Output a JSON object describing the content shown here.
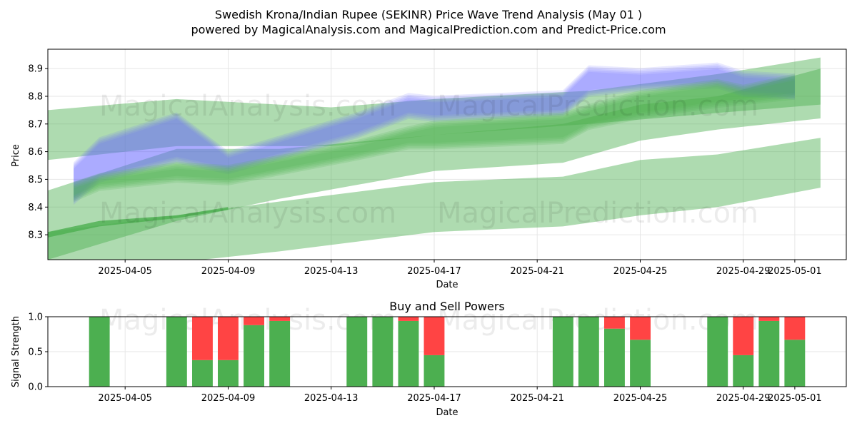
{
  "title_line1": "Swedish Krona/Indian Rupee (SEKINR) Price Wave Trend Analysis (May 01 )",
  "title_line2": "powered by MagicalAnalysis.com and MagicalPrediction.com and Predict-Price.com",
  "watermarks": [
    "MagicalAnalysis.com",
    "MagicalPrediction.com"
  ],
  "colors": {
    "blue_band": "#6666ff",
    "green_band": "#4caf50",
    "buy": "#4caf50",
    "sell": "#ff4444"
  },
  "chart_data": [
    {
      "type": "area",
      "title": "",
      "xlabel": "Date",
      "ylabel": "Price",
      "xlim": [
        "2025-04-02",
        "2025-05-03"
      ],
      "ylim": [
        8.21,
        8.97
      ],
      "x_ticks": [
        "2025-04-05",
        "2025-04-09",
        "2025-04-13",
        "2025-04-17",
        "2025-04-21",
        "2025-04-25",
        "2025-04-29",
        "2025-05-01"
      ],
      "y_ticks": [
        8.3,
        8.4,
        8.5,
        8.6,
        8.7,
        8.8,
        8.9
      ],
      "grid": true,
      "series": [
        {
          "color": "blue",
          "x": [
            "2025-04-03",
            "2025-04-04",
            "2025-04-07",
            "2025-04-09",
            "2025-04-14",
            "2025-04-16",
            "2025-04-17",
            "2025-04-22",
            "2025-04-23",
            "2025-04-25",
            "2025-04-28",
            "2025-04-29",
            "2025-05-01"
          ],
          "low": [
            8.42,
            8.5,
            8.57,
            8.53,
            8.66,
            8.73,
            8.72,
            8.74,
            8.81,
            8.83,
            8.84,
            8.81,
            8.8
          ],
          "high": [
            8.55,
            8.64,
            8.73,
            8.59,
            8.73,
            8.8,
            8.79,
            8.81,
            8.9,
            8.89,
            8.91,
            8.88,
            8.87
          ]
        },
        {
          "color": "green",
          "x": [
            "2025-04-03",
            "2025-04-04",
            "2025-04-07",
            "2025-04-09",
            "2025-04-14",
            "2025-04-16",
            "2025-04-17",
            "2025-04-22",
            "2025-04-23",
            "2025-04-25",
            "2025-04-28",
            "2025-04-29",
            "2025-05-01"
          ],
          "low": [
            8.43,
            8.47,
            8.5,
            8.49,
            8.58,
            8.62,
            8.62,
            8.64,
            8.69,
            8.73,
            8.77,
            8.78,
            8.8
          ],
          "high": [
            8.48,
            8.51,
            8.55,
            8.54,
            8.63,
            8.68,
            8.7,
            8.73,
            8.76,
            8.81,
            8.85,
            8.83,
            8.87
          ]
        },
        {
          "color": "green",
          "x": [
            "2025-04-02",
            "2025-04-07",
            "2025-04-13",
            "2025-04-17",
            "2025-04-23",
            "2025-04-28",
            "2025-05-02"
          ],
          "low": [
            8.57,
            8.62,
            8.62,
            8.66,
            8.7,
            8.74,
            8.77
          ],
          "high": [
            8.75,
            8.79,
            8.76,
            8.79,
            8.82,
            8.88,
            8.94
          ]
        },
        {
          "color": "green",
          "x": [
            "2025-04-02",
            "2025-04-07",
            "2025-04-11",
            "2025-04-17",
            "2025-04-22",
            "2025-04-25",
            "2025-04-28",
            "2025-05-02"
          ],
          "low": [
            8.21,
            8.35,
            8.43,
            8.53,
            8.56,
            8.64,
            8.68,
            8.72
          ],
          "high": [
            8.46,
            8.61,
            8.61,
            8.66,
            8.7,
            8.77,
            8.8,
            8.9
          ]
        },
        {
          "color": "green",
          "x": [
            "2025-04-02",
            "2025-04-07",
            "2025-04-11",
            "2025-04-17",
            "2025-04-22",
            "2025-04-25",
            "2025-04-28",
            "2025-05-02"
          ],
          "low": [
            8.2,
            8.2,
            8.24,
            8.31,
            8.33,
            8.37,
            8.4,
            8.47
          ],
          "high": [
            8.31,
            8.37,
            8.42,
            8.49,
            8.51,
            8.57,
            8.59,
            8.65
          ]
        },
        {
          "color": "green",
          "x": [
            "2025-04-02",
            "2025-04-04",
            "2025-04-07",
            "2025-04-09"
          ],
          "low": [
            8.29,
            8.33,
            8.36,
            8.39
          ],
          "high": [
            8.31,
            8.35,
            8.37,
            8.4
          ]
        }
      ]
    },
    {
      "type": "bar",
      "title": "Buy and Sell Powers",
      "xlabel": "Date",
      "ylabel": "Signal Strength",
      "ylim": [
        0,
        1
      ],
      "y_ticks": [
        "0.0",
        "0.5",
        "1.0"
      ],
      "x_ticks": [
        "2025-04-05",
        "2025-04-09",
        "2025-04-13",
        "2025-04-17",
        "2025-04-21",
        "2025-04-25",
        "2025-04-29",
        "2025-05-01"
      ],
      "grid": true,
      "categories": [
        "2025-04-04",
        "2025-04-07",
        "2025-04-08",
        "2025-04-09",
        "2025-04-10",
        "2025-04-11",
        "2025-04-14",
        "2025-04-15",
        "2025-04-16",
        "2025-04-17",
        "2025-04-22",
        "2025-04-23",
        "2025-04-24",
        "2025-04-25",
        "2025-04-28",
        "2025-04-29",
        "2025-04-30",
        "2025-05-01"
      ],
      "buy": [
        1.0,
        1.0,
        0.38,
        0.38,
        0.88,
        0.94,
        1.0,
        1.0,
        0.94,
        0.45,
        1.0,
        1.0,
        0.83,
        0.67,
        1.0,
        0.45,
        0.94,
        0.67
      ],
      "sell": [
        0.0,
        0.0,
        0.62,
        0.62,
        0.12,
        0.06,
        0.0,
        0.0,
        0.06,
        0.55,
        0.0,
        0.0,
        0.17,
        0.33,
        0.0,
        0.55,
        0.06,
        0.33
      ]
    }
  ]
}
